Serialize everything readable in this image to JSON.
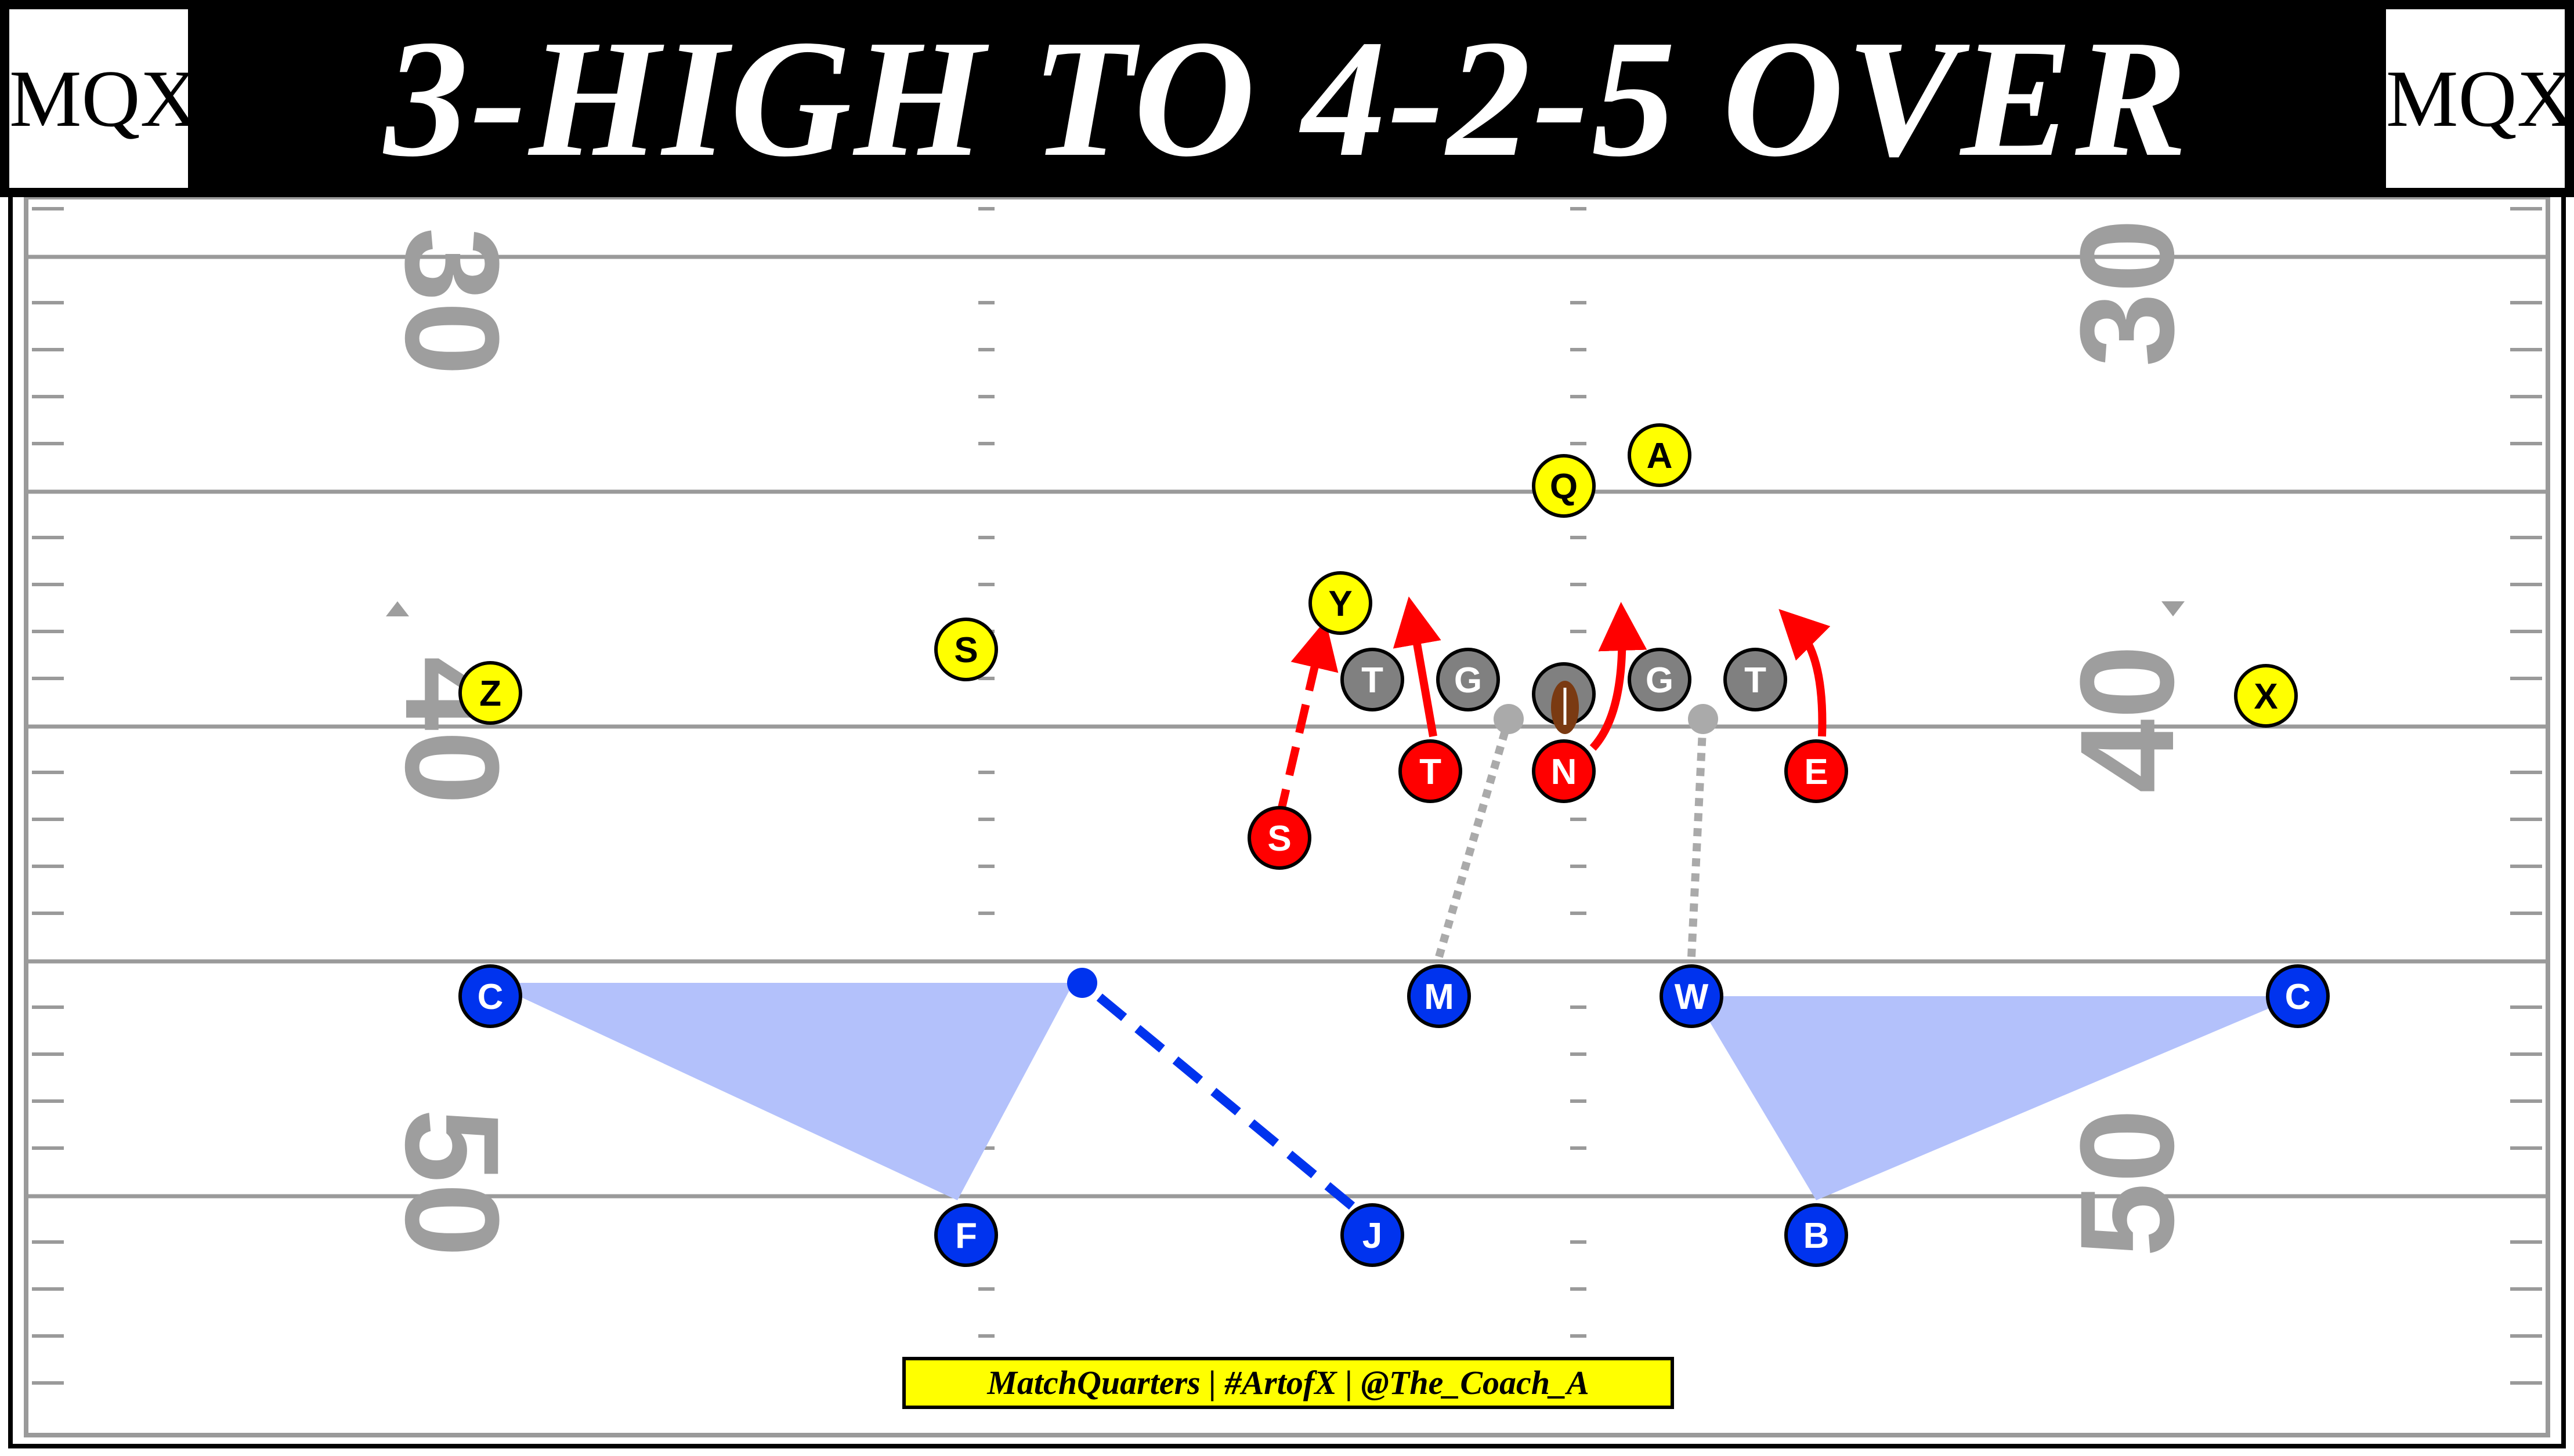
{
  "title": "3-HIGH TO 4-2-5 OVER",
  "logo": {
    "left_text": "MQX",
    "right_text": "MQX"
  },
  "credit": "MatchQuarters | #ArtofX | @The_Coach_A",
  "field": {
    "yard_numbers": [
      "30",
      "40",
      "50"
    ]
  },
  "colors": {
    "offense": "#ffff00",
    "offensive_line": "#808080",
    "defense_front": "#ff0000",
    "defense_back": "#0033ee",
    "zone_fill": "#b3c1fb",
    "route": "#ff0000",
    "coverage_route": "#0033ee",
    "blitz_path": "#aaaaaa"
  },
  "players": {
    "offense": [
      {
        "id": "off-a",
        "label": "A"
      },
      {
        "id": "off-q",
        "label": "Q"
      },
      {
        "id": "off-y",
        "label": "Y"
      },
      {
        "id": "off-s",
        "label": "S"
      },
      {
        "id": "off-z",
        "label": "Z"
      },
      {
        "id": "off-x",
        "label": "X"
      }
    ],
    "offensive_line": [
      {
        "id": "ol-t-left",
        "label": "T"
      },
      {
        "id": "ol-g-left",
        "label": "G"
      },
      {
        "id": "ol-g-right",
        "label": "G"
      },
      {
        "id": "ol-t-right",
        "label": "T"
      }
    ],
    "defense_front": [
      {
        "id": "dl-s",
        "label": "S"
      },
      {
        "id": "dl-t",
        "label": "T"
      },
      {
        "id": "dl-n",
        "label": "N"
      },
      {
        "id": "dl-e",
        "label": "E"
      }
    ],
    "defense_back": [
      {
        "id": "db-c-left",
        "label": "C"
      },
      {
        "id": "db-m",
        "label": "M"
      },
      {
        "id": "db-w",
        "label": "W"
      },
      {
        "id": "db-c-right",
        "label": "C"
      },
      {
        "id": "db-f",
        "label": "F"
      },
      {
        "id": "db-j",
        "label": "J"
      },
      {
        "id": "db-b",
        "label": "B"
      }
    ]
  }
}
